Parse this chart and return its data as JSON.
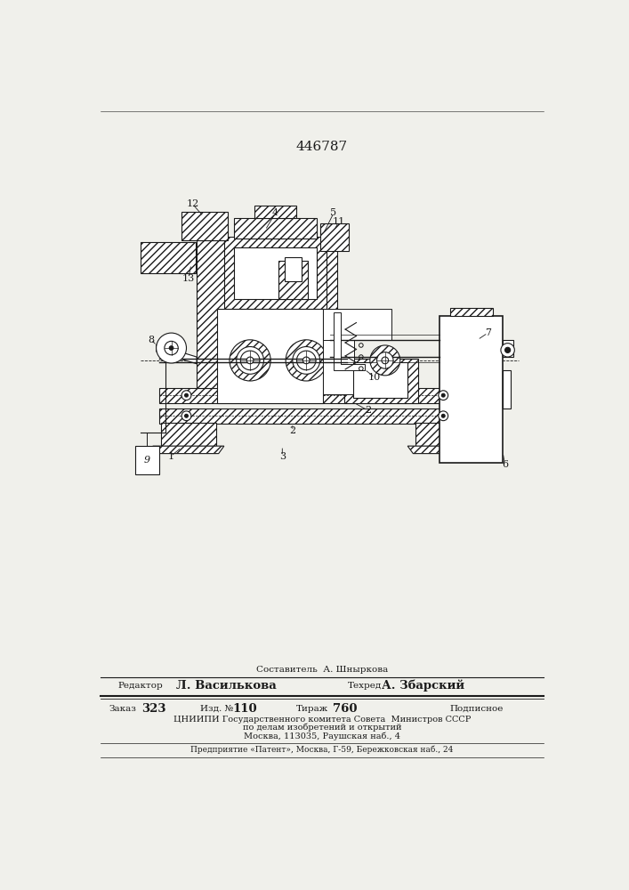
{
  "patent_number": "446787",
  "title_text": "Составитель  А. Шныркова",
  "editor_label": "Редактор",
  "editor_name": "Л. Василькова",
  "tech_label": "Техред",
  "tech_name": "А. Збарский",
  "order_label": "Заказ",
  "order_num": "323",
  "izd_label": "Изд. №",
  "izd_num": "110",
  "tirazh_label": "Тираж",
  "tirazh_num": "760",
  "podpisnoe": "Подписное",
  "org_line1": "ЦНИИПИ Государственного комитета Совета  Министров СССР",
  "org_line2": "по делам изобретений и открытий",
  "org_line3": "Москва, 113035, Раушская наб., 4",
  "predpr": "Предприятие «Патент», Москва, Г-59, Бережковская наб., 24",
  "bg_color": "#f0f0eb",
  "line_color": "#1a1a1a"
}
